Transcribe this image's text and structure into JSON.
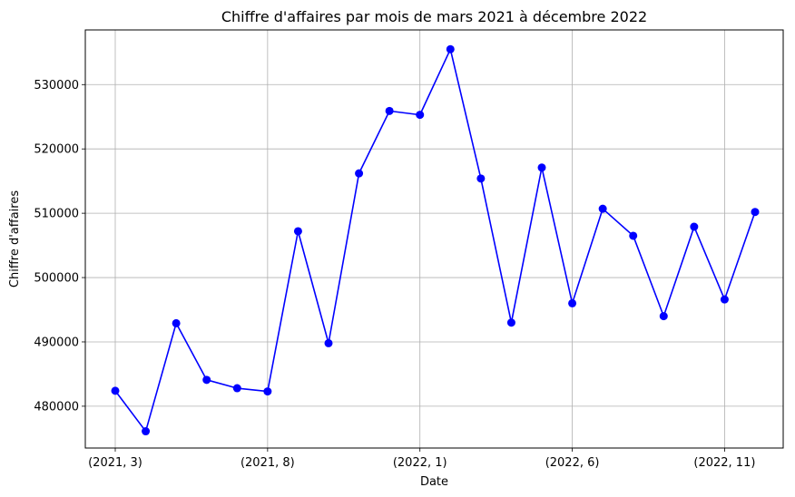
{
  "chart_data": {
    "type": "line",
    "title": "Chiffre d'affaires par mois de mars 2021 à décembre 2022",
    "xlabel": "Date",
    "ylabel": "Chiffre d'affaires",
    "x": [
      "(2021, 3)",
      "(2021, 4)",
      "(2021, 5)",
      "(2021, 6)",
      "(2021, 7)",
      "(2021, 8)",
      "(2021, 9)",
      "(2021, 10)",
      "(2021, 11)",
      "(2021, 12)",
      "(2022, 1)",
      "(2022, 2)",
      "(2022, 3)",
      "(2022, 4)",
      "(2022, 5)",
      "(2022, 6)",
      "(2022, 7)",
      "(2022, 8)",
      "(2022, 9)",
      "(2022, 10)",
      "(2022, 11)",
      "(2022, 12)"
    ],
    "x_ticks": [
      "(2021, 3)",
      "(2021, 8)",
      "(2022, 1)",
      "(2022, 6)",
      "(2022, 11)"
    ],
    "y_ticks": [
      480000,
      490000,
      500000,
      510000,
      520000,
      530000
    ],
    "ylim": [
      473500,
      538500
    ],
    "grid": true,
    "series": [
      {
        "color": "#0000ff",
        "marker": "circle",
        "values": [
          482400,
          476100,
          492900,
          484100,
          482800,
          482300,
          507200,
          489800,
          516200,
          525900,
          525300,
          535500,
          515400,
          493000,
          517100,
          496000,
          510700,
          506500,
          494000,
          507900,
          496600,
          510200
        ]
      }
    ]
  }
}
